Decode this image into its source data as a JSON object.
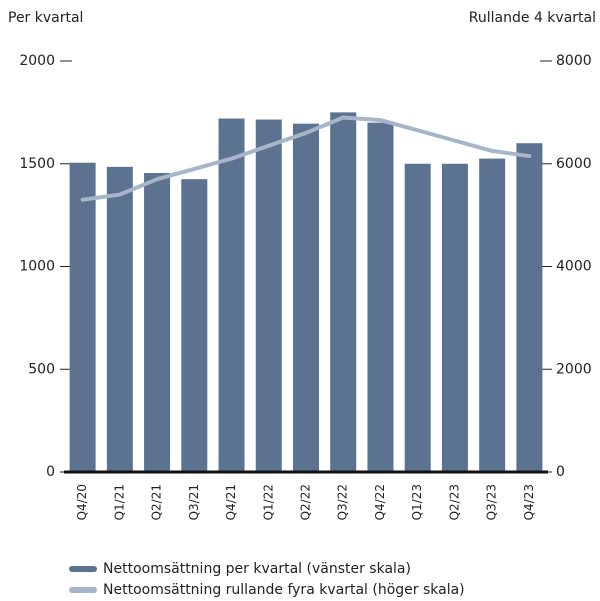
{
  "chart_data": {
    "type": "bar",
    "y_axis_title": "Per kvartal",
    "y2_axis_title": "Rullande 4 kvartal",
    "categories": [
      "Q4/20",
      "Q1/21",
      "Q2/21",
      "Q3/21",
      "Q4/21",
      "Q1/22",
      "Q2/22",
      "Q3/22",
      "Q4/22",
      "Q1/23",
      "Q2/23",
      "Q3/23",
      "Q4/23"
    ],
    "series": [
      {
        "name": "Nettoomsättning per kvartal (vänster skala)",
        "color": "#5b7290",
        "type": "bar",
        "values": [
          1505,
          1485,
          1455,
          1425,
          1720,
          1715,
          1695,
          1750,
          1700,
          1500,
          1500,
          1525,
          1600
        ]
      },
      {
        "name": "Nettoomsättning rullande fyra kvartal (höger skala)",
        "color": "#a7b5c8",
        "type": "line",
        "axis": "y2",
        "values": [
          5300,
          5400,
          5700,
          5900,
          6100,
          6350,
          6600,
          6900,
          6850,
          6650,
          6450,
          6250,
          6150
        ]
      }
    ],
    "ylim": [
      0,
      2000
    ],
    "yticks": [
      0,
      500,
      1000,
      1500,
      2000
    ],
    "y2lim": [
      0,
      8000
    ],
    "y2ticks": [
      0,
      2000,
      4000,
      6000,
      8000
    ],
    "legend": "bottom-left"
  }
}
